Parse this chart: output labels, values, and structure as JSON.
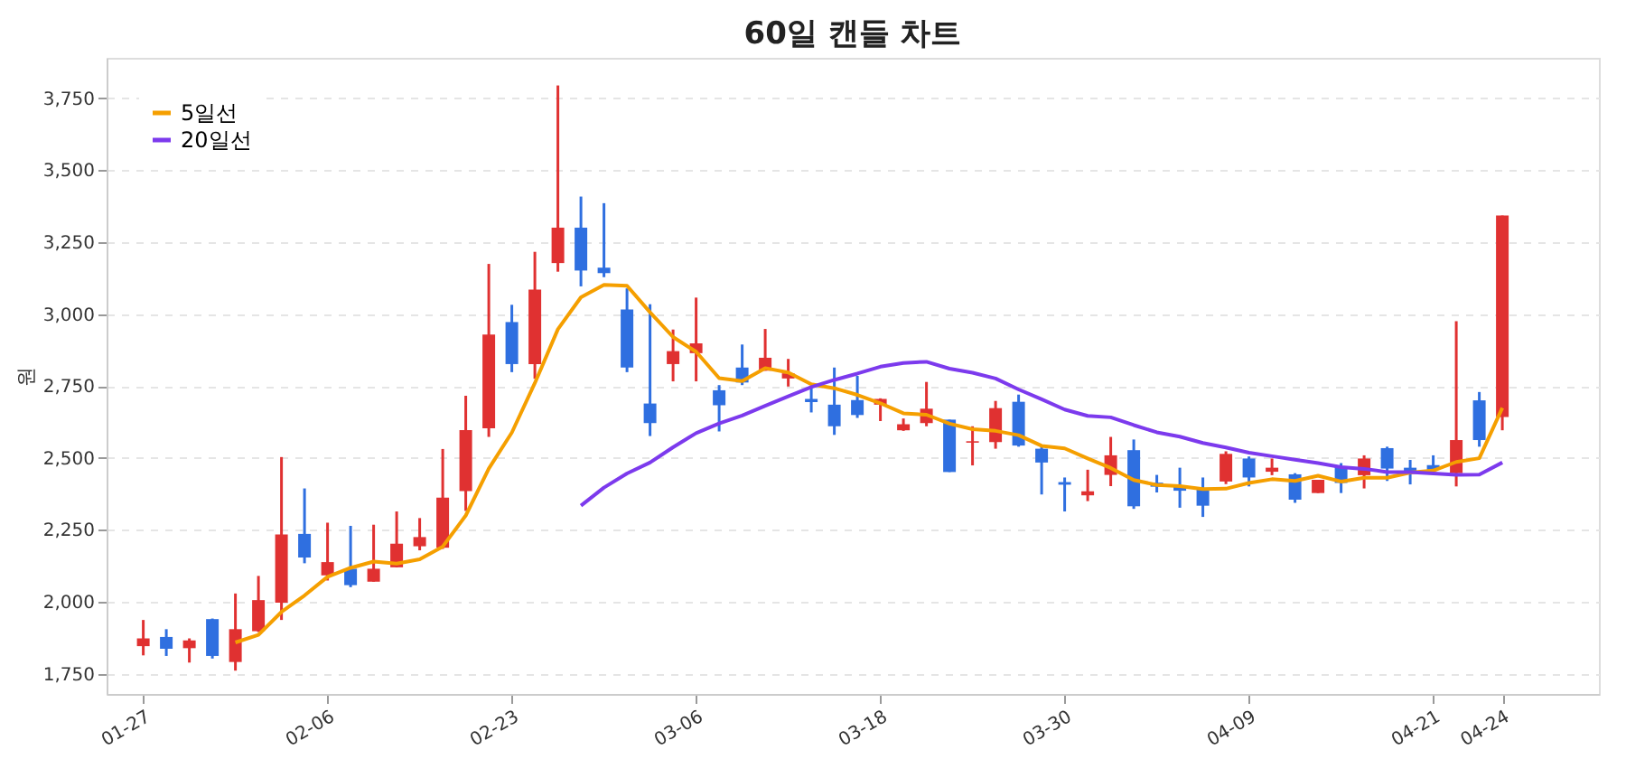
{
  "chart_data": {
    "type": "candlestick",
    "title": "60일 캔들 차트",
    "ylabel": "원",
    "categories": [
      "01-27",
      null,
      null,
      null,
      null,
      null,
      null,
      null,
      "02-06",
      null,
      null,
      null,
      null,
      null,
      null,
      null,
      "02-23",
      null,
      null,
      null,
      null,
      null,
      null,
      null,
      "03-06",
      null,
      null,
      null,
      null,
      null,
      null,
      null,
      "03-18",
      null,
      null,
      null,
      null,
      null,
      null,
      null,
      "03-30",
      null,
      null,
      null,
      null,
      null,
      null,
      null,
      "04-09",
      null,
      null,
      null,
      null,
      null,
      null,
      null,
      "04-21",
      null,
      null,
      "04-24"
    ],
    "ohlc": [
      [
        1846,
        1937,
        1814,
        1873
      ],
      [
        1878,
        1905,
        1812,
        1837
      ],
      [
        1839,
        1873,
        1789,
        1866
      ],
      [
        1940,
        1942,
        1803,
        1812
      ],
      [
        1791,
        2029,
        1761,
        1905
      ],
      [
        1898,
        2090,
        1895,
        2006
      ],
      [
        1997,
        2503,
        1937,
        2234
      ],
      [
        2236,
        2394,
        2134,
        2154
      ],
      [
        2092,
        2275,
        2074,
        2138
      ],
      [
        2115,
        2264,
        2051,
        2058
      ],
      [
        2070,
        2268,
        2070,
        2115
      ],
      [
        2120,
        2314,
        2120,
        2202
      ],
      [
        2193,
        2291,
        2179,
        2225
      ],
      [
        2188,
        2531,
        2184,
        2362
      ],
      [
        2385,
        2716,
        2316,
        2597
      ],
      [
        2603,
        3174,
        2573,
        2929
      ],
      [
        2972,
        3032,
        2798,
        2826
      ],
      [
        2826,
        3216,
        2775,
        3085
      ],
      [
        3177,
        3794,
        3147,
        3300
      ],
      [
        3300,
        3408,
        3096,
        3151
      ],
      [
        3161,
        3385,
        3128,
        3142
      ],
      [
        3016,
        3089,
        2798,
        2814
      ],
      [
        2689,
        3034,
        2576,
        2621
      ],
      [
        2826,
        2946,
        2766,
        2871
      ],
      [
        2864,
        3057,
        2766,
        2898
      ],
      [
        2735,
        2753,
        2592,
        2683
      ],
      [
        2814,
        2894,
        2753,
        2762
      ],
      [
        2803,
        2948,
        2803,
        2848
      ],
      [
        2776,
        2844,
        2748,
        2794
      ],
      [
        2705,
        2741,
        2658,
        2694
      ],
      [
        2685,
        2814,
        2580,
        2610
      ],
      [
        2701,
        2785,
        2639,
        2649
      ],
      [
        2685,
        2707,
        2628,
        2705
      ],
      [
        2596,
        2637,
        2594,
        2617
      ],
      [
        2621,
        2764,
        2610,
        2671
      ],
      [
        2633,
        2633,
        2451,
        2451
      ],
      [
        2553,
        2610,
        2474,
        2558
      ],
      [
        2555,
        2698,
        2532,
        2673
      ],
      [
        2695,
        2720,
        2539,
        2543
      ],
      [
        2532,
        2539,
        2373,
        2484
      ],
      [
        2416,
        2432,
        2314,
        2407
      ],
      [
        2370,
        2459,
        2350,
        2384
      ],
      [
        2441,
        2573,
        2402,
        2509
      ],
      [
        2527,
        2564,
        2323,
        2332
      ],
      [
        2414,
        2441,
        2380,
        2400
      ],
      [
        2402,
        2466,
        2327,
        2386
      ],
      [
        2395,
        2432,
        2295,
        2334
      ],
      [
        2418,
        2523,
        2409,
        2514
      ],
      [
        2498,
        2505,
        2401,
        2432
      ],
      [
        2452,
        2498,
        2440,
        2466
      ],
      [
        2443,
        2447,
        2344,
        2355
      ],
      [
        2378,
        2424,
        2378,
        2424
      ],
      [
        2470,
        2482,
        2378,
        2413
      ],
      [
        2440,
        2509,
        2394,
        2498
      ],
      [
        2534,
        2539,
        2420,
        2463
      ],
      [
        2466,
        2493,
        2408,
        2447
      ],
      [
        2475,
        2509,
        2447,
        2459
      ],
      [
        2447,
        2975,
        2401,
        2562
      ],
      [
        2700,
        2729,
        2539,
        2562
      ],
      [
        2642,
        3342,
        2596,
        3342
      ]
    ],
    "colors": [
      "#e03131",
      "#2f6fe0",
      "#e03131",
      "#2f6fe0",
      "#e03131",
      "#e03131",
      "#e03131",
      "#2f6fe0",
      "#e03131",
      "#2f6fe0",
      "#e03131",
      "#e03131",
      "#e03131",
      "#e03131",
      "#e03131",
      "#e03131",
      "#2f6fe0",
      "#e03131",
      "#e03131",
      "#2f6fe0",
      "#2f6fe0",
      "#2f6fe0",
      "#2f6fe0",
      "#e03131",
      "#e03131",
      "#2f6fe0",
      "#2f6fe0",
      "#e03131",
      "#e03131",
      "#2f6fe0",
      "#2f6fe0",
      "#2f6fe0",
      "#e03131",
      "#e03131",
      "#e03131",
      "#2f6fe0",
      "#e03131",
      "#e03131",
      "#2f6fe0",
      "#2f6fe0",
      "#2f6fe0",
      "#e03131",
      "#e03131",
      "#2f6fe0",
      "#2f6fe0",
      "#2f6fe0",
      "#2f6fe0",
      "#e03131",
      "#2f6fe0",
      "#e03131",
      "#2f6fe0",
      "#e03131",
      "#2f6fe0",
      "#e03131",
      "#2f6fe0",
      "#2f6fe0",
      "#2f6fe0",
      "#e03131",
      "#2f6fe0",
      "#e03131"
    ],
    "series": [
      {
        "name": "5일선",
        "type": "line",
        "color": "#f59f00",
        "values": [
          null,
          null,
          null,
          null,
          1859,
          1885,
          1965,
          2022,
          2087,
          2118,
          2140,
          2133,
          2148,
          2192,
          2300,
          2463,
          2588,
          2760,
          2947,
          3058,
          3101,
          3098,
          3006,
          2920,
          2869,
          2777,
          2767,
          2812,
          2797,
          2756,
          2742,
          2719,
          2690,
          2655,
          2650,
          2619,
          2600,
          2594,
          2579,
          2542,
          2533,
          2498,
          2465,
          2423,
          2406,
          2402,
          2392,
          2393,
          2413,
          2426,
          2420,
          2438,
          2418,
          2431,
          2431,
          2449,
          2456,
          2486,
          2499,
          2674
        ]
      },
      {
        "name": "20일선",
        "type": "line",
        "color": "#7c3aed",
        "values": [
          null,
          null,
          null,
          null,
          null,
          null,
          null,
          null,
          null,
          null,
          null,
          null,
          null,
          null,
          null,
          null,
          null,
          null,
          null,
          2334,
          2397,
          2446,
          2484,
          2537,
          2586,
          2620,
          2647,
          2681,
          2714,
          2746,
          2771,
          2793,
          2817,
          2830,
          2834,
          2810,
          2796,
          2776,
          2738,
          2704,
          2668,
          2646,
          2641,
          2614,
          2589,
          2574,
          2552,
          2536,
          2518,
          2506,
          2494,
          2482,
          2468,
          2462,
          2451,
          2451,
          2446,
          2441,
          2442,
          2484
        ]
      }
    ],
    "ylim": [
      1680,
      3890
    ],
    "yticks": [
      {
        "value": 1750,
        "label": "1,750"
      },
      {
        "value": 2000,
        "label": "2,000"
      },
      {
        "value": 2250,
        "label": "2,250"
      },
      {
        "value": 2500,
        "label": "2,500"
      },
      {
        "value": 2750,
        "label": "2,750"
      },
      {
        "value": 3000,
        "label": "3,000"
      },
      {
        "value": 3250,
        "label": "3,250"
      },
      {
        "value": 3500,
        "label": "3,500"
      },
      {
        "value": 3750,
        "label": "3,750"
      }
    ],
    "grid": "y",
    "legend": "top left",
    "line_style": "solid",
    "marker": "none"
  }
}
